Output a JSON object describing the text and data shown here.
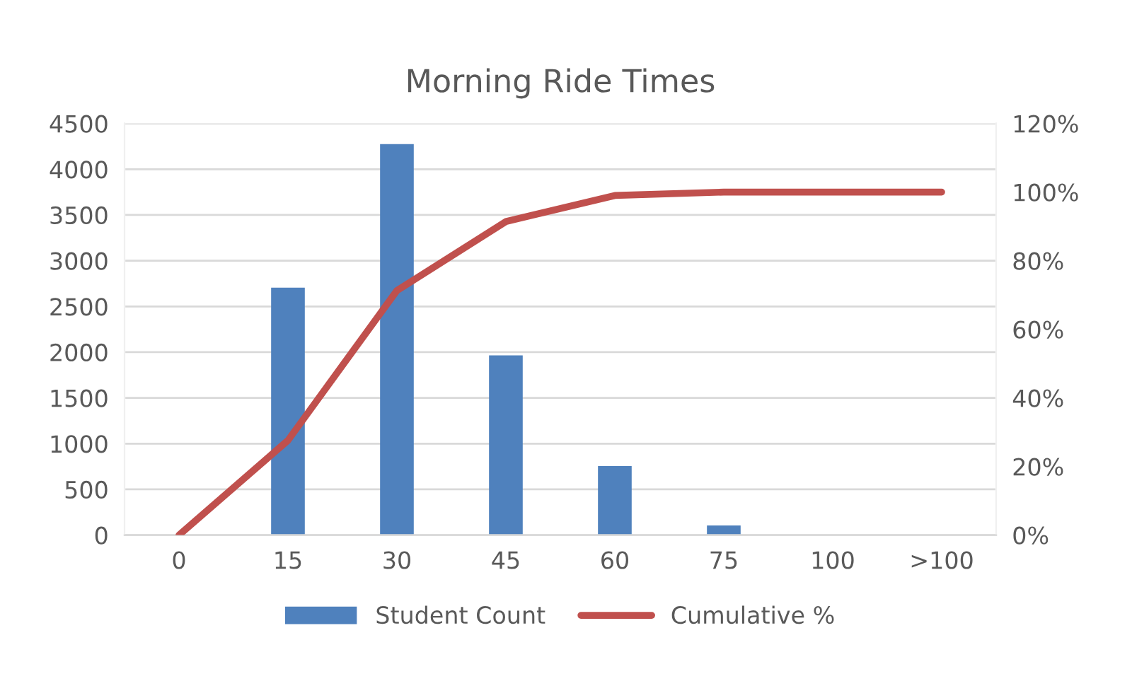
{
  "chart_data": {
    "type": "bar",
    "title": "Morning Ride Times",
    "categories": [
      "0",
      "15",
      "30",
      "45",
      "60",
      "75",
      "100",
      ">100"
    ],
    "series": [
      {
        "name": "Student Count",
        "color": "#4f81bd",
        "values": [
          0,
          2700,
          4270,
          1960,
          750,
          100,
          0,
          0
        ]
      },
      {
        "name": "Cumulative %",
        "type": "line",
        "axis": "y2",
        "color": "#c0504d",
        "values": [
          0,
          27.6,
          71.3,
          91.4,
          99,
          100,
          100,
          100
        ]
      }
    ],
    "ylim": [
      0,
      4500
    ],
    "yticks": [
      0,
      500,
      1000,
      1500,
      2000,
      2500,
      3000,
      3500,
      4000,
      4500
    ],
    "y2lim": [
      0,
      120
    ],
    "y2ticks": [
      {
        "value": 0,
        "label": "0%"
      },
      {
        "value": 20,
        "label": "20%"
      },
      {
        "value": 40,
        "label": "40%"
      },
      {
        "value": 60,
        "label": "60%"
      },
      {
        "value": 80,
        "label": "80%"
      },
      {
        "value": 100,
        "label": "100%"
      },
      {
        "value": 120,
        "label": "120%"
      }
    ],
    "grid": "y",
    "legend": "bottom",
    "marker": "none",
    "line_style": "solid"
  }
}
